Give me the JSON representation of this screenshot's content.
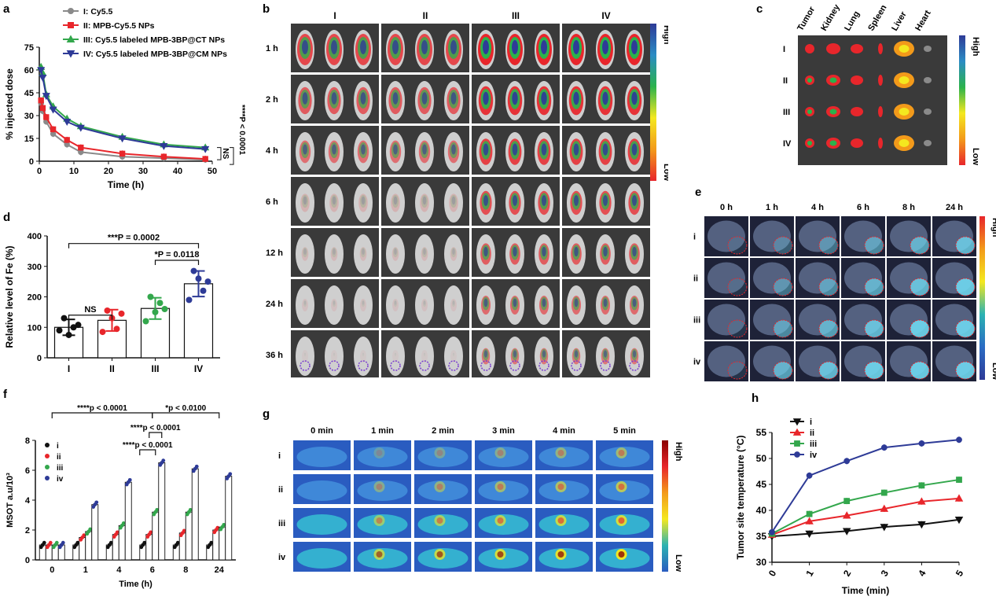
{
  "panels": {
    "a": {
      "letter": "a"
    },
    "b": {
      "letter": "b",
      "cols": [
        "I",
        "II",
        "III",
        "IV"
      ],
      "rows": [
        "1 h",
        "2 h",
        "4 h",
        "6 h",
        "12 h",
        "24 h",
        "36 h"
      ],
      "scale_high": "High",
      "scale_low": "Low"
    },
    "c": {
      "letter": "c",
      "organs": [
        "Tumor",
        "Kidney",
        "Lung",
        "Spleen",
        "Liver",
        "Heart"
      ],
      "rows": [
        "I",
        "II",
        "III",
        "IV"
      ],
      "scale_high": "High",
      "scale_low": "Low"
    },
    "d": {
      "letter": "d"
    },
    "e": {
      "letter": "e",
      "cols": [
        "0 h",
        "1 h",
        "4 h",
        "6 h",
        "8 h",
        "24 h"
      ],
      "rows": [
        "i",
        "ii",
        "iii",
        "iv"
      ],
      "scale_high": "High",
      "scale_low": "Low"
    },
    "f": {
      "letter": "f"
    },
    "g": {
      "letter": "g",
      "cols": [
        "0 min",
        "1 min",
        "2 min",
        "3 min",
        "4 min",
        "5 min"
      ],
      "rows": [
        "i",
        "ii",
        "iii",
        "iv"
      ],
      "scale_high": "High",
      "scale_low": "Low"
    },
    "h": {
      "letter": "h"
    }
  },
  "chart_data": [
    {
      "id": "a",
      "type": "line",
      "xlabel": "Time (h)",
      "ylabel": "% injected dose",
      "xlim": [
        0,
        50
      ],
      "ylim": [
        0,
        75
      ],
      "xticks": [
        0,
        10,
        20,
        30,
        40,
        50
      ],
      "yticks": [
        0,
        15,
        30,
        45,
        60,
        75
      ],
      "x": [
        0.5,
        1,
        2,
        4,
        8,
        12,
        24,
        36,
        48
      ],
      "series": [
        {
          "name": "I: Cy5.5",
          "color": "#8a8a8a",
          "marker": "circle",
          "values": [
            38,
            33,
            26,
            18,
            11,
            6,
            3,
            2,
            1
          ]
        },
        {
          "name": "II: MPB-Cy5.5 NPs",
          "color": "#e8262b",
          "marker": "square",
          "values": [
            40,
            35,
            29,
            21,
            14,
            9,
            5,
            3,
            1.5
          ]
        },
        {
          "name": "III: Cy5.5 labeled MPB-3BP@CT NPs",
          "color": "#33a74c",
          "marker": "triangle-up",
          "values": [
            62,
            58,
            44,
            36,
            28,
            23,
            16,
            11,
            9
          ]
        },
        {
          "name": "IV: Cy5.5 labeled MPB-3BP@CM NPs",
          "color": "#2e3b97",
          "marker": "triangle-down",
          "values": [
            60,
            55,
            43,
            34,
            26,
            22,
            15,
            10,
            8
          ]
        }
      ],
      "annotations": [
        {
          "text": "NS"
        },
        {
          "text": "****P < 0.0001"
        }
      ]
    },
    {
      "id": "d",
      "type": "bar",
      "ylabel": "Relative level of Fe (%)",
      "ylim": [
        0,
        400
      ],
      "yticks": [
        0,
        100,
        200,
        300,
        400
      ],
      "categories": [
        "I",
        "II",
        "III",
        "IV"
      ],
      "values": [
        100,
        123,
        162,
        243
      ],
      "errors": [
        26,
        35,
        35,
        42
      ],
      "point_colors": [
        "#111111",
        "#e8262b",
        "#33a74c",
        "#2e3b97"
      ],
      "points": [
        [
          90,
          130,
          75,
          100,
          108
        ],
        [
          85,
          155,
          130,
          95,
          145
        ],
        [
          120,
          200,
          150,
          180,
          160
        ],
        [
          190,
          285,
          260,
          220,
          250
        ]
      ],
      "annotations": [
        {
          "text": "NS"
        },
        {
          "text": "*P = 0.0118"
        },
        {
          "text": "***P = 0.0002"
        }
      ]
    },
    {
      "id": "f",
      "type": "bar",
      "xlabel": "Time (h)",
      "ylabel": "MSOT a.u/10³",
      "ylim": [
        0,
        8
      ],
      "yticks": [
        0,
        2,
        4,
        6,
        8
      ],
      "categories": [
        "0",
        "1",
        "4",
        "6",
        "8",
        "24"
      ],
      "series": [
        {
          "name": "i",
          "color": "#111111",
          "values": [
            1.0,
            1.0,
            1.0,
            1.0,
            1.0,
            1.0
          ]
        },
        {
          "name": "ii",
          "color": "#e8262b",
          "values": [
            1.0,
            1.5,
            1.7,
            1.7,
            1.8,
            2.0
          ]
        },
        {
          "name": "iii",
          "color": "#33a74c",
          "values": [
            1.0,
            1.9,
            2.3,
            3.2,
            3.2,
            2.2
          ]
        },
        {
          "name": "iv",
          "color": "#2e3b97",
          "values": [
            1.0,
            3.7,
            5.2,
            6.5,
            6.1,
            5.6
          ]
        }
      ],
      "annotations": [
        {
          "text": "****p < 0.0001"
        },
        {
          "text": "*p < 0.0100"
        },
        {
          "text": "****p < 0.0001"
        },
        {
          "text": "****p < 0.0001"
        }
      ]
    },
    {
      "id": "h",
      "type": "line",
      "xlabel": "Time (min)",
      "ylabel": "Tumor site temperature  (°C)",
      "xlim": [
        0,
        5
      ],
      "ylim": [
        30,
        55
      ],
      "xticks": [
        0,
        1,
        2,
        3,
        4,
        5
      ],
      "yticks": [
        30,
        35,
        40,
        45,
        50,
        55
      ],
      "x": [
        0,
        1,
        2,
        3,
        4,
        5
      ],
      "series": [
        {
          "name": "i",
          "color": "#111111",
          "marker": "triangle-down",
          "values": [
            35.0,
            35.5,
            36.0,
            36.8,
            37.3,
            38.2
          ]
        },
        {
          "name": "ii",
          "color": "#e8262b",
          "marker": "triangle-up",
          "values": [
            35.3,
            37.9,
            39.0,
            40.3,
            41.7,
            42.3
          ]
        },
        {
          "name": "iii",
          "color": "#33a74c",
          "marker": "square",
          "values": [
            35.5,
            39.3,
            41.8,
            43.4,
            44.8,
            45.9
          ]
        },
        {
          "name": "iv",
          "color": "#2e3b97",
          "marker": "circle",
          "values": [
            35.8,
            46.7,
            49.5,
            52.1,
            52.9,
            53.6
          ]
        }
      ]
    }
  ]
}
